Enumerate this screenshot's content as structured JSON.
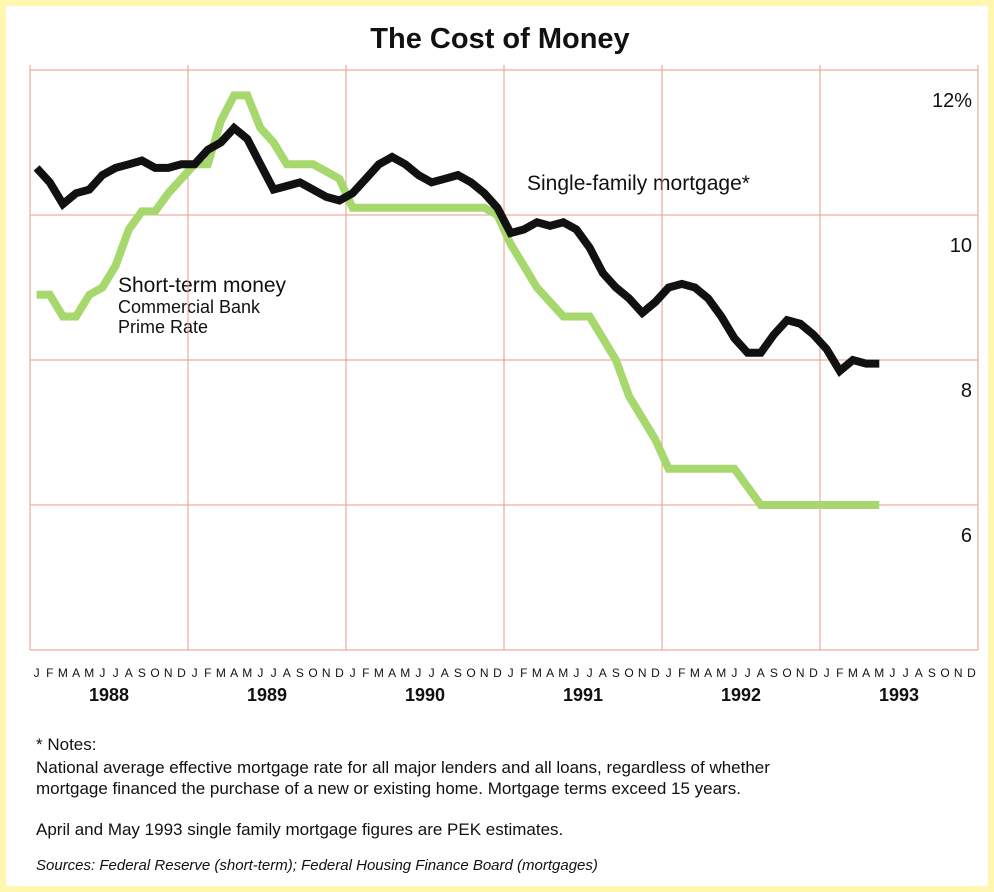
{
  "chart_data": {
    "type": "line",
    "title": "The Cost of Money",
    "categories": [
      "J",
      "F",
      "M",
      "A",
      "M",
      "J",
      "J",
      "A",
      "S",
      "O",
      "N",
      "D",
      "J",
      "F",
      "M",
      "A",
      "M",
      "J",
      "J",
      "A",
      "S",
      "O",
      "N",
      "D",
      "J",
      "F",
      "M",
      "A",
      "M",
      "J",
      "J",
      "A",
      "S",
      "O",
      "N",
      "D",
      "J",
      "F",
      "M",
      "A",
      "M",
      "J",
      "J",
      "A",
      "S",
      "O",
      "N",
      "D",
      "J",
      "F",
      "M",
      "A",
      "M",
      "J",
      "J",
      "A",
      "S",
      "O",
      "N",
      "D",
      "J",
      "F",
      "M",
      "A",
      "M",
      "J",
      "J",
      "A",
      "S",
      "O",
      "N",
      "D"
    ],
    "years": [
      "1988",
      "1989",
      "1990",
      "1991",
      "1992",
      "1993"
    ],
    "series": [
      {
        "name": "Single-family mortgage*",
        "color": "#111111",
        "values": [
          10.65,
          10.45,
          10.15,
          10.3,
          10.35,
          10.55,
          10.65,
          10.7,
          10.75,
          10.65,
          10.65,
          10.7,
          10.7,
          10.9,
          11.0,
          11.2,
          11.05,
          10.7,
          10.35,
          10.4,
          10.45,
          10.35,
          10.25,
          10.2,
          10.3,
          10.5,
          10.7,
          10.8,
          10.7,
          10.55,
          10.45,
          10.5,
          10.55,
          10.45,
          10.3,
          10.1,
          9.75,
          9.8,
          9.9,
          9.85,
          9.9,
          9.8,
          9.55,
          9.2,
          9.0,
          8.85,
          8.65,
          8.8,
          9.0,
          9.05,
          9.0,
          8.85,
          8.6,
          8.3,
          8.1,
          8.1,
          8.35,
          8.55,
          8.5,
          8.35,
          8.15,
          7.85,
          8.0,
          7.95,
          7.95,
          null,
          null,
          null,
          null,
          null,
          null,
          null
        ]
      },
      {
        "name": "Short-term money",
        "color": "#a6d86e",
        "values": [
          8.9,
          8.9,
          8.6,
          8.6,
          8.9,
          9.0,
          9.3,
          9.8,
          10.05,
          10.05,
          10.3,
          10.5,
          10.7,
          10.7,
          11.3,
          11.65,
          11.65,
          11.2,
          11.0,
          10.7,
          10.7,
          10.7,
          10.6,
          10.5,
          10.1,
          10.1,
          10.1,
          10.1,
          10.1,
          10.1,
          10.1,
          10.1,
          10.1,
          10.1,
          10.1,
          10.0,
          9.6,
          9.3,
          9.0,
          8.8,
          8.6,
          8.6,
          8.6,
          8.3,
          8.0,
          7.5,
          7.2,
          6.9,
          6.5,
          6.5,
          6.5,
          6.5,
          6.5,
          6.5,
          6.25,
          6.0,
          6.0,
          6.0,
          6.0,
          6.0,
          6.0,
          6.0,
          6.0,
          6.0,
          6.0,
          null,
          null,
          null,
          null,
          null,
          null,
          null
        ]
      }
    ],
    "series_sublabels": [
      "Commercial Bank",
      "Prime Rate"
    ],
    "ylim": [
      4,
      12
    ],
    "yticks": [
      {
        "value": 12,
        "label": "12%"
      },
      10,
      8,
      6
    ],
    "grid": true
  },
  "notes": {
    "heading": "* Notes:",
    "lines": [
      "National average effective mortgage rate for all major lenders and all loans, regardless of whether",
      "mortgage financed the purchase of a new or existing home.  Mortgage terms exceed 15 years."
    ],
    "estimate": "April and May 1993 single family mortgage figures are PEK estimates.",
    "sources": "Sources: Federal Reserve (short-term); Federal Housing Finance Board (mortgages)"
  }
}
